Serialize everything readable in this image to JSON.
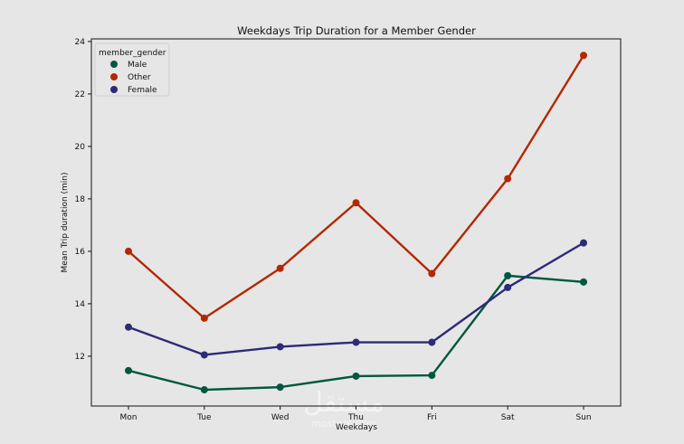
{
  "chart_data": {
    "type": "line",
    "title": "Weekdays Trip Duration for a Member Gender",
    "xlabel": "Weekdays",
    "ylabel": "Mean Trip duration (min)",
    "categories": [
      "Mon",
      "Tue",
      "Wed",
      "Thu",
      "Fri",
      "Sat",
      "Sun"
    ],
    "ylim": [
      10.1,
      24.1
    ],
    "yticks": [
      12,
      14,
      16,
      18,
      20,
      22,
      24
    ],
    "grid": false,
    "legend": {
      "title": "member_gender",
      "placement": "top-left"
    },
    "series": [
      {
        "name": "Male",
        "color": "#00573f",
        "values": [
          11.45,
          10.72,
          10.82,
          11.24,
          11.27,
          15.07,
          14.83
        ]
      },
      {
        "name": "Other",
        "color": "#b22800",
        "values": [
          16.0,
          13.45,
          15.35,
          17.85,
          15.15,
          18.77,
          23.47
        ]
      },
      {
        "name": "Female",
        "color": "#2d2a78",
        "values": [
          13.11,
          12.05,
          12.36,
          12.53,
          12.53,
          14.62,
          16.32
        ]
      }
    ]
  },
  "watermark": {
    "text": "مستقل",
    "subtext": "mostaql.com"
  }
}
